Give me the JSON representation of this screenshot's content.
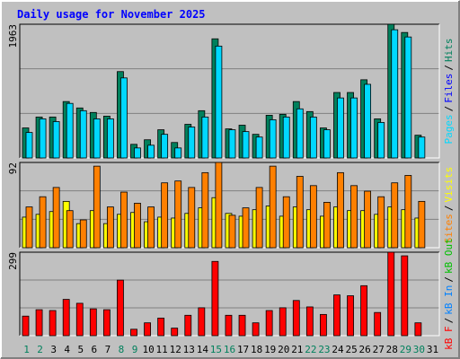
{
  "chart_data": [
    {
      "type": "bar",
      "title": "Daily usage for November 2025",
      "legend_separator": "/",
      "ylim": [
        0,
        1963
      ],
      "yticks": [
        1963
      ],
      "series": [
        {
          "name": "Hits",
          "color": "#00805c",
          "values": [
            441,
            601,
            601,
            828,
            734,
            668,
            614,
            1268,
            200,
            267,
            414,
            227,
            494,
            694,
            1749,
            427,
            481,
            347,
            627,
            641,
            828,
            681,
            441,
            961,
            961,
            1148,
            574,
            1963,
            1842,
            334,
            null
          ]
        },
        {
          "name": "Files",
          "color": "#0000ff",
          "values": [
            null,
            null,
            null,
            null,
            null,
            null,
            null,
            null,
            null,
            null,
            null,
            null,
            null,
            null,
            null,
            null,
            null,
            null,
            null,
            null,
            null,
            null,
            null,
            null,
            null,
            null,
            null,
            null,
            null,
            null,
            null
          ]
        },
        {
          "name": "Pages",
          "color": "#00d8ff",
          "values": [
            374,
            574,
            534,
            801,
            694,
            574,
            574,
            1175,
            147,
            187,
            347,
            147,
            454,
            601,
            1642,
            414,
            387,
            307,
            561,
            601,
            721,
            601,
            414,
            881,
            881,
            1081,
            521,
            1882,
            1776,
            307,
            null
          ]
        }
      ]
    },
    {
      "type": "bar",
      "ylim": [
        0,
        92
      ],
      "yticks": [
        92
      ],
      "series": [
        {
          "name": "Visits",
          "color": "#ffff00",
          "values": [
            33,
            36,
            39,
            50,
            26,
            40,
            26,
            36,
            38,
            28,
            33,
            32,
            37,
            43,
            54,
            37,
            34,
            41,
            45,
            34,
            44,
            41,
            34,
            44,
            40,
            40,
            36,
            44,
            41,
            32,
            null
          ]
        },
        {
          "name": "Sites",
          "color": "#ff8000",
          "values": [
            44,
            55,
            65,
            40,
            30,
            88,
            44,
            60,
            48,
            44,
            70,
            72,
            65,
            81,
            92,
            35,
            43,
            65,
            88,
            55,
            77,
            67,
            49,
            81,
            67,
            61,
            55,
            70,
            78,
            50,
            null
          ]
        }
      ]
    },
    {
      "type": "bar",
      "ylim": [
        0,
        299
      ],
      "yticks": [
        299
      ],
      "categories": [
        "1",
        "2",
        "3",
        "4",
        "5",
        "6",
        "7",
        "8",
        "9",
        "10",
        "11",
        "12",
        "13",
        "14",
        "15",
        "16",
        "17",
        "18",
        "19",
        "20",
        "21",
        "22",
        "23",
        "24",
        "25",
        "26",
        "27",
        "28",
        "29",
        "30",
        "31"
      ],
      "category_colors": [
        "#00805c",
        "#00805c",
        "#000000",
        "#000000",
        "#000000",
        "#000000",
        "#000000",
        "#00805c",
        "#00805c",
        "#000000",
        "#000000",
        "#000000",
        "#000000",
        "#000000",
        "#00805c",
        "#00805c",
        "#000000",
        "#000000",
        "#000000",
        "#000000",
        "#000000",
        "#00805c",
        "#00805c",
        "#000000",
        "#000000",
        "#000000",
        "#000000",
        "#000000",
        "#00805c",
        "#00805c",
        "#000000"
      ],
      "series": [
        {
          "name": "kB Out",
          "color": "#00c000",
          "values": [
            null,
            null,
            null,
            null,
            null,
            null,
            null,
            null,
            null,
            null,
            null,
            null,
            null,
            null,
            null,
            null,
            null,
            null,
            null,
            null,
            null,
            null,
            null,
            null,
            null,
            null,
            null,
            null,
            null,
            null,
            null
          ]
        },
        {
          "name": "kB In",
          "color": "#0080ff",
          "values": [
            null,
            null,
            null,
            null,
            null,
            null,
            null,
            null,
            null,
            null,
            null,
            null,
            null,
            null,
            null,
            null,
            null,
            null,
            null,
            null,
            null,
            null,
            null,
            null,
            null,
            null,
            null,
            null,
            null,
            null,
            null
          ]
        },
        {
          "name": "kB F",
          "color": "#ff0000",
          "values": [
            70,
            93,
            90,
            130,
            116,
            96,
            93,
            199,
            23,
            46,
            63,
            27,
            73,
            100,
            266,
            73,
            73,
            46,
            90,
            100,
            126,
            103,
            76,
            146,
            143,
            179,
            83,
            299,
            286,
            46,
            null
          ]
        }
      ]
    }
  ]
}
